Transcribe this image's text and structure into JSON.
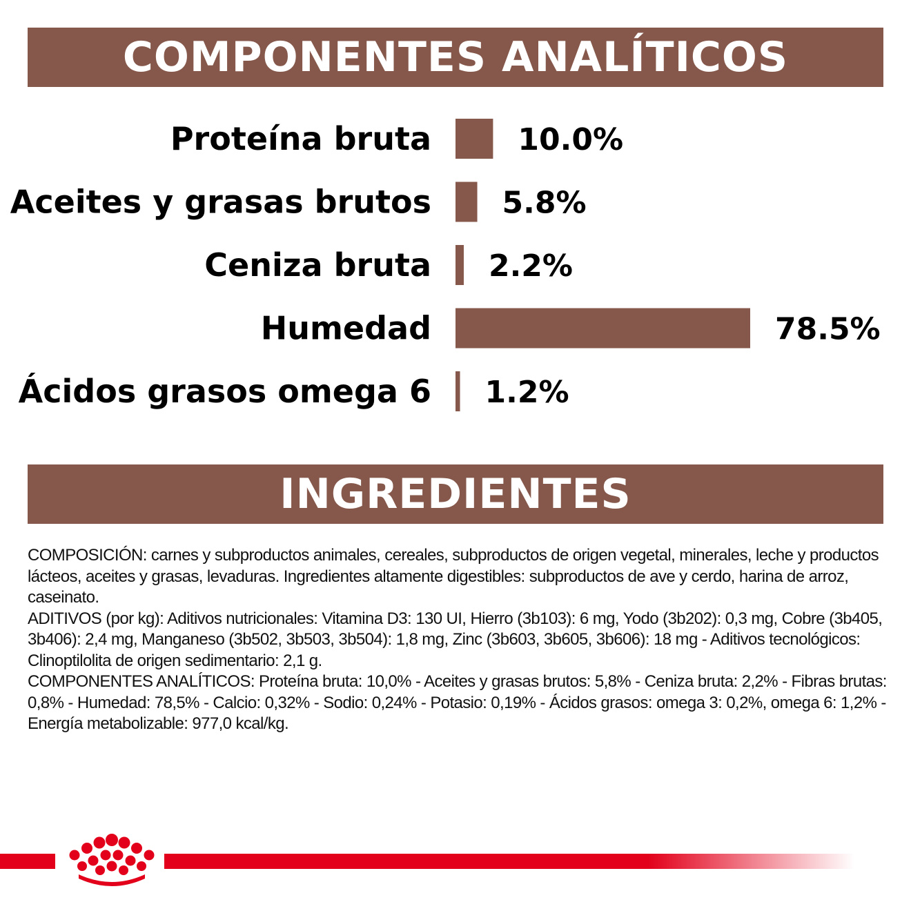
{
  "headers": {
    "analytic": "COMPONENTES ANALÍTICOS",
    "ingredients": "INGREDIENTES"
  },
  "colors": {
    "bar": "#85584b",
    "banner": "#85584b",
    "brand_red": "#e2001a"
  },
  "chart_data": {
    "type": "bar",
    "orientation": "horizontal",
    "categories": [
      "Proteína bruta",
      "Aceites y grasas brutos",
      "Ceniza bruta",
      "Humedad",
      "Ácidos grasos omega 6"
    ],
    "values": [
      10.0,
      5.8,
      2.2,
      78.5,
      1.2
    ],
    "value_labels": [
      "10.0%",
      "5.8%",
      "2.2%",
      "78.5%",
      "1.2%"
    ],
    "unit": "%"
  },
  "ingredients": {
    "composition": "COMPOSICIÓN: carnes y subproductos animales, cereales, subproductos de origen vegetal, minerales, leche y productos lácteos, aceites y grasas, levaduras. Ingredientes altamente digestibles: subproductos de ave y cerdo, harina de arroz, caseinato.",
    "additives": "ADITIVOS (por kg): Aditivos nutricionales: Vitamina D3: 130 UI, Hierro (3b103): 6 mg, Yodo (3b202): 0,3 mg, Cobre (3b405, 3b406): 2,4 mg, Manganeso (3b502, 3b503, 3b504): 1,8 mg, Zinc (3b603, 3b605, 3b606): 18 mg - Aditivos tecnológicos: Clinoptilolita de origen sedimentario: 2,1 g.",
    "analytic": "COMPONENTES ANALÍTICOS: Proteína bruta: 10,0% - Aceites y grasas brutos: 5,8% - Ceniza bruta: 2,2% - Fibras brutas: 0,8% - Humedad: 78,5% - Calcio: 0,32% - Sodio: 0,24% - Potasio: 0,19% - Ácidos grasos: omega 3: 0,2%, omega 6: 1,2% - Energía metabolizable: 977,0 kcal/kg."
  },
  "logo": {
    "icon": "royal-canin-crown-icon"
  }
}
